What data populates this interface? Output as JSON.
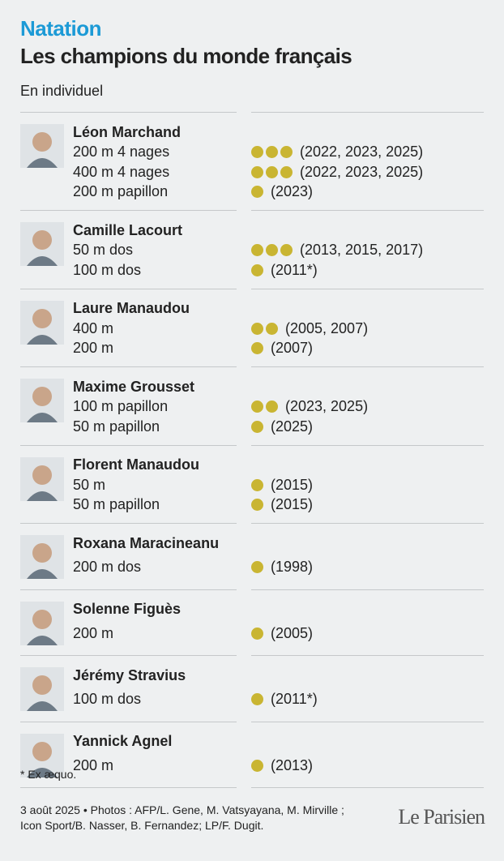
{
  "header": {
    "kicker": "Natation",
    "title": "Les champions du monde français",
    "subtitle": "En individuel"
  },
  "athletes": [
    {
      "name": "Léon Marchand",
      "events": [
        {
          "event": "200 m 4 nages",
          "titles": 3,
          "years": "(2022, 2023, 2025)"
        },
        {
          "event": "400 m 4 nages",
          "titles": 3,
          "years": "(2022, 2023, 2025)"
        },
        {
          "event": "200 m papillon",
          "titles": 1,
          "years": "(2023)"
        }
      ]
    },
    {
      "name": "Camille Lacourt",
      "events": [
        {
          "event": "50 m dos",
          "titles": 3,
          "years": "(2013, 2015, 2017)"
        },
        {
          "event": "100 m dos",
          "titles": 1,
          "years": "(2011*)"
        }
      ]
    },
    {
      "name": "Laure Manaudou",
      "events": [
        {
          "event": "400 m",
          "titles": 2,
          "years": "(2005, 2007)"
        },
        {
          "event": "200 m",
          "titles": 1,
          "years": "(2007)"
        }
      ]
    },
    {
      "name": "Maxime Grousset",
      "events": [
        {
          "event": "100 m papillon",
          "titles": 2,
          "years": "(2023, 2025)"
        },
        {
          "event": "50 m papillon",
          "titles": 1,
          "years": "(2025)"
        }
      ]
    },
    {
      "name": "Florent Manaudou",
      "events": [
        {
          "event": "50 m",
          "titles": 1,
          "years": "(2015)"
        },
        {
          "event": "50 m papillon",
          "titles": 1,
          "years": "(2015)"
        }
      ]
    },
    {
      "name": "Roxana Maracineanu",
      "events": [
        {
          "event": "200 m dos",
          "titles": 1,
          "years": "(1998)"
        }
      ]
    },
    {
      "name": "Solenne Figuès",
      "events": [
        {
          "event": "200 m",
          "titles": 1,
          "years": "(2005)"
        }
      ]
    },
    {
      "name": "Jérémy Stravius",
      "events": [
        {
          "event": "100 m dos",
          "titles": 1,
          "years": "(2011*)"
        }
      ]
    },
    {
      "name": "Yannick Agnel",
      "events": [
        {
          "event": "200 m",
          "titles": 1,
          "years": "(2013)"
        }
      ]
    }
  ],
  "footer": {
    "note": "* Ex æquo.",
    "credits": [
      "3 août 2025 • Photos : AFP/L. Gene, M. Vatsyayana, M. Mirville ;",
      "Icon Sport/B. Nasser, B. Fernandez; LP/F. Dugit."
    ],
    "logo": "Le Parisien"
  }
}
